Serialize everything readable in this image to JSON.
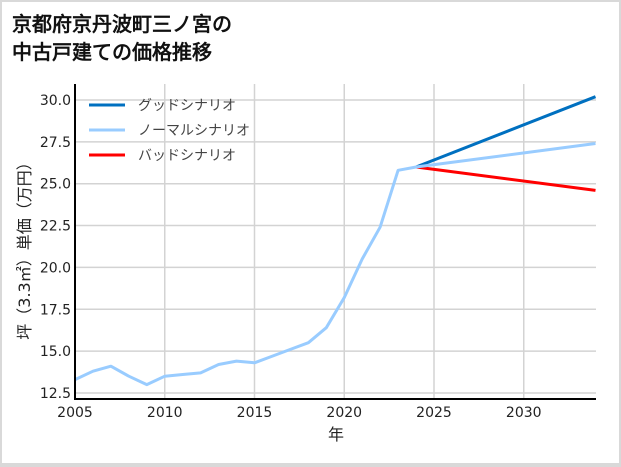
{
  "chart_data": {
    "type": "line",
    "title": "京都府京丹波町三ノ宮の\n中古戸建ての価格推移",
    "title_lines": [
      "京都府京丹波町三ノ宮の",
      "中古戸建ての価格推移"
    ],
    "xlabel": "年",
    "ylabel": "坪（3.3㎡）単価（万円）",
    "xlim": [
      2005,
      2034
    ],
    "ylim": [
      12.2,
      30.5
    ],
    "xticks": [
      2005,
      2010,
      2015,
      2020,
      2025,
      2030
    ],
    "yticks": [
      "12.5",
      "15.0",
      "17.5",
      "20.0",
      "22.5",
      "25.0",
      "27.5",
      "30.0"
    ],
    "grid": true,
    "legend_position": "upper left",
    "series": [
      {
        "name": "ノーマルシナリオ",
        "color": "#99ccff",
        "x": [
          2005,
          2006,
          2007,
          2008,
          2009,
          2010,
          2011,
          2012,
          2013,
          2014,
          2015,
          2016,
          2017,
          2018,
          2019,
          2020,
          2021,
          2022,
          2023,
          2024,
          2034
        ],
        "values": [
          13.3,
          13.8,
          14.1,
          13.5,
          13.0,
          13.5,
          13.6,
          13.7,
          14.2,
          14.4,
          14.3,
          14.7,
          15.1,
          15.5,
          16.4,
          18.2,
          20.5,
          22.4,
          25.8,
          26.0,
          27.4
        ]
      },
      {
        "name": "グッドシナリオ",
        "color": "#0070c0",
        "x": [
          2024,
          2034
        ],
        "values": [
          26.0,
          30.2
        ]
      },
      {
        "name": "バッドシナリオ",
        "color": "#ff0000",
        "x": [
          2024,
          2034
        ],
        "values": [
          26.0,
          24.6
        ]
      }
    ],
    "legend": [
      "グッドシナリオ",
      "ノーマルシナリオ",
      "バッドシナリオ"
    ]
  }
}
